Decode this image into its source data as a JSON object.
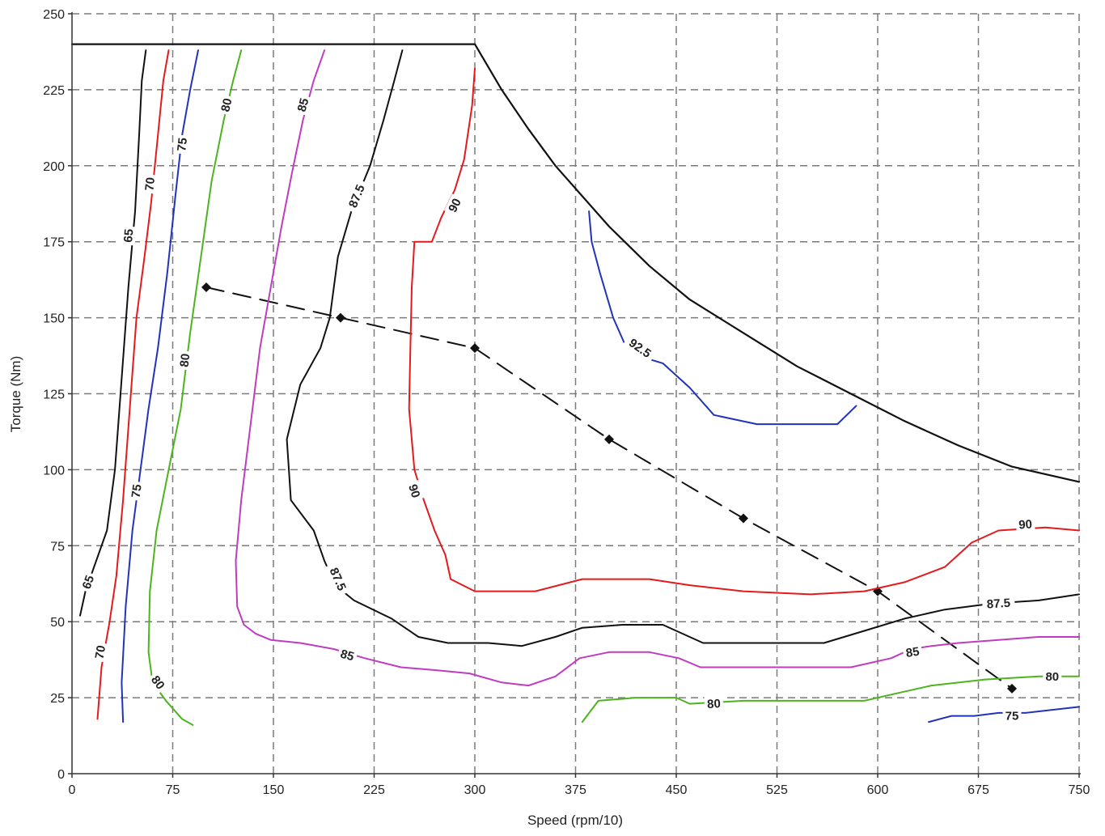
{
  "chart_data": {
    "type": "line",
    "title": "",
    "xlabel": "Speed (rpm/10)",
    "ylabel": "Torque (Nm)",
    "xlim": [
      0,
      750
    ],
    "ylim": [
      0,
      250
    ],
    "grid": true,
    "x_ticks": [
      {
        "value": 0,
        "label": "0"
      },
      {
        "value": 75,
        "label": "75"
      },
      {
        "value": 150,
        "label": "150"
      },
      {
        "value": 225,
        "label": "225"
      },
      {
        "value": 300,
        "label": "300"
      },
      {
        "value": 375,
        "label": "375"
      },
      {
        "value": 450,
        "label": "450"
      },
      {
        "value": 525,
        "label": "525"
      },
      {
        "value": 600,
        "label": "600"
      },
      {
        "value": 675,
        "label": "675"
      },
      {
        "value": 750,
        "label": "750"
      }
    ],
    "y_ticks": [
      {
        "value": 0,
        "label": "0"
      },
      {
        "value": 25,
        "label": "25"
      },
      {
        "value": 50,
        "label": "50"
      },
      {
        "value": 75,
        "label": "75"
      },
      {
        "value": 100,
        "label": "100"
      },
      {
        "value": 125,
        "label": "125"
      },
      {
        "value": 150,
        "label": "150"
      },
      {
        "value": 175,
        "label": "175"
      },
      {
        "value": 200,
        "label": "200"
      },
      {
        "value": 225,
        "label": "225"
      },
      {
        "value": 250,
        "label": "250"
      }
    ],
    "series": [
      {
        "role": "max-torque-envelope",
        "color": "#111111",
        "points": [
          [
            0,
            240
          ],
          [
            300,
            240
          ],
          [
            320,
            225
          ],
          [
            340,
            212
          ],
          [
            360,
            200
          ],
          [
            380,
            190
          ],
          [
            400,
            180
          ],
          [
            430,
            167
          ],
          [
            460,
            156
          ],
          [
            500,
            145
          ],
          [
            540,
            134
          ],
          [
            580,
            125
          ],
          [
            620,
            116
          ],
          [
            660,
            108
          ],
          [
            700,
            101
          ],
          [
            750,
            96
          ]
        ]
      },
      {
        "role": "operating-points",
        "color": "#111111",
        "dashed": true,
        "markers": true,
        "points": [
          [
            100,
            160
          ],
          [
            200,
            150
          ],
          [
            300,
            140
          ],
          [
            400,
            110
          ],
          [
            500,
            84
          ],
          [
            600,
            60
          ],
          [
            700,
            28
          ]
        ]
      },
      {
        "role": "contour",
        "level": "65",
        "color": "#111111",
        "points": [
          [
            55,
            238
          ],
          [
            52,
            228
          ],
          [
            50,
            210
          ],
          [
            47,
            185
          ],
          [
            42,
            160
          ],
          [
            37,
            130
          ],
          [
            32,
            100
          ],
          [
            26,
            80
          ],
          [
            18,
            70
          ],
          [
            10,
            60
          ],
          [
            6,
            52
          ]
        ],
        "labels": [
          {
            "text": "65",
            "x": 42,
            "y": 177
          },
          {
            "text": "65",
            "x": 12,
            "y": 63
          }
        ]
      },
      {
        "role": "contour",
        "level": "70",
        "color": "#e41a1c",
        "points": [
          [
            72,
            238
          ],
          [
            68,
            228
          ],
          [
            64,
            210
          ],
          [
            59,
            188
          ],
          [
            54,
            170
          ],
          [
            48,
            150
          ],
          [
            43,
            120
          ],
          [
            38,
            90
          ],
          [
            33,
            65
          ],
          [
            28,
            50
          ],
          [
            22,
            35
          ],
          [
            19,
            18
          ]
        ],
        "labels": [
          {
            "text": "70",
            "x": 58,
            "y": 194
          },
          {
            "text": "70",
            "x": 21,
            "y": 40
          }
        ]
      },
      {
        "role": "contour",
        "level": "75",
        "color": "#2233bb",
        "points": [
          [
            94,
            238
          ],
          [
            88,
            225
          ],
          [
            82,
            210
          ],
          [
            77,
            190
          ],
          [
            71,
            165
          ],
          [
            64,
            140
          ],
          [
            57,
            120
          ],
          [
            51,
            100
          ],
          [
            45,
            80
          ],
          [
            40,
            55
          ],
          [
            37,
            30
          ],
          [
            38,
            17
          ]
        ],
        "labels": [
          {
            "text": "75",
            "x": 82,
            "y": 207
          },
          {
            "text": "75",
            "x": 48,
            "y": 93
          }
        ]
      },
      {
        "role": "contour",
        "level": "80",
        "color": "#4db31f",
        "points": [
          [
            126,
            238
          ],
          [
            120,
            228
          ],
          [
            113,
            215
          ],
          [
            104,
            195
          ],
          [
            96,
            170
          ],
          [
            88,
            145
          ],
          [
            81,
            120
          ],
          [
            72,
            100
          ],
          [
            63,
            80
          ],
          [
            58,
            60
          ],
          [
            57,
            40
          ],
          [
            60,
            30
          ],
          [
            70,
            24
          ],
          [
            82,
            18
          ],
          [
            90,
            16
          ]
        ],
        "labels": [
          {
            "text": "80",
            "x": 115,
            "y": 220
          },
          {
            "text": "80",
            "x": 84,
            "y": 136
          },
          {
            "text": "80",
            "x": 64,
            "y": 30
          }
        ]
      },
      {
        "role": "contour",
        "level": "85",
        "color": "#c03bc0",
        "points": [
          [
            188,
            238
          ],
          [
            180,
            228
          ],
          [
            172,
            215
          ],
          [
            164,
            198
          ],
          [
            156,
            180
          ],
          [
            148,
            160
          ],
          [
            140,
            140
          ],
          [
            133,
            115
          ],
          [
            126,
            90
          ],
          [
            122,
            70
          ],
          [
            123,
            55
          ],
          [
            128,
            49
          ],
          [
            137,
            46
          ],
          [
            148,
            44
          ],
          [
            170,
            43
          ],
          [
            195,
            41
          ],
          [
            218,
            38
          ],
          [
            245,
            35
          ],
          [
            272,
            34
          ],
          [
            296,
            33
          ],
          [
            320,
            30
          ],
          [
            340,
            29
          ],
          [
            360,
            32
          ],
          [
            378,
            38
          ],
          [
            400,
            40
          ],
          [
            430,
            40
          ],
          [
            452,
            38
          ],
          [
            468,
            35
          ],
          [
            500,
            35
          ],
          [
            540,
            35
          ],
          [
            580,
            35
          ],
          [
            610,
            38
          ],
          [
            625,
            41
          ],
          [
            640,
            42
          ],
          [
            660,
            43
          ],
          [
            690,
            44
          ],
          [
            720,
            45
          ],
          [
            750,
            45
          ]
        ],
        "labels": [
          {
            "text": "85",
            "x": 172,
            "y": 220
          },
          {
            "text": "85",
            "x": 205,
            "y": 39
          },
          {
            "text": "85",
            "x": 626,
            "y": 40
          }
        ]
      },
      {
        "role": "contour",
        "level": "87.5",
        "color": "#111111",
        "points": [
          [
            246,
            238
          ],
          [
            240,
            228
          ],
          [
            232,
            215
          ],
          [
            222,
            200
          ],
          [
            208,
            185
          ],
          [
            198,
            170
          ],
          [
            192,
            150
          ],
          [
            185,
            140
          ],
          [
            170,
            128
          ],
          [
            160,
            110
          ],
          [
            163,
            90
          ],
          [
            180,
            80
          ],
          [
            188,
            70
          ],
          [
            196,
            62
          ],
          [
            210,
            57
          ],
          [
            238,
            51
          ],
          [
            258,
            45
          ],
          [
            280,
            43
          ],
          [
            310,
            43
          ],
          [
            335,
            42
          ],
          [
            360,
            45
          ],
          [
            380,
            48
          ],
          [
            410,
            49
          ],
          [
            440,
            49
          ],
          [
            470,
            43
          ],
          [
            500,
            43
          ],
          [
            530,
            43
          ],
          [
            560,
            43
          ],
          [
            590,
            47
          ],
          [
            620,
            51
          ],
          [
            650,
            54
          ],
          [
            685,
            56
          ],
          [
            720,
            57
          ],
          [
            750,
            59
          ]
        ],
        "labels": [
          {
            "text": "87.5",
            "x": 212,
            "y": 190
          },
          {
            "text": "87.5",
            "x": 198,
            "y": 64
          },
          {
            "text": "87.5",
            "x": 690,
            "y": 56
          }
        ]
      },
      {
        "role": "contour",
        "level": "90",
        "color": "#e41a1c",
        "points": [
          [
            300,
            232
          ],
          [
            298,
            220
          ],
          [
            292,
            202
          ],
          [
            285,
            192
          ],
          [
            275,
            183
          ],
          [
            268,
            175
          ],
          [
            255,
            175
          ],
          [
            253,
            160
          ],
          [
            252,
            140
          ],
          [
            251,
            120
          ],
          [
            255,
            100
          ],
          [
            262,
            90
          ],
          [
            270,
            80
          ],
          [
            278,
            72
          ],
          [
            282,
            64
          ],
          [
            300,
            60
          ],
          [
            345,
            60
          ],
          [
            380,
            64
          ],
          [
            430,
            64
          ],
          [
            460,
            62
          ],
          [
            500,
            60
          ],
          [
            550,
            59
          ],
          [
            590,
            60
          ],
          [
            620,
            63
          ],
          [
            650,
            68
          ],
          [
            670,
            76
          ],
          [
            690,
            80
          ],
          [
            725,
            81
          ],
          [
            750,
            80
          ]
        ],
        "labels": [
          {
            "text": "90",
            "x": 285,
            "y": 187
          },
          {
            "text": "90",
            "x": 255,
            "y": 93
          },
          {
            "text": "90",
            "x": 710,
            "y": 82
          }
        ]
      },
      {
        "role": "contour",
        "level": "92.5",
        "color": "#2233bb",
        "points": [
          [
            385,
            185
          ],
          [
            387,
            175
          ],
          [
            393,
            165
          ],
          [
            403,
            150
          ],
          [
            412,
            141
          ],
          [
            425,
            137
          ],
          [
            440,
            135
          ],
          [
            460,
            127
          ],
          [
            478,
            118
          ],
          [
            510,
            115
          ],
          [
            540,
            115
          ],
          [
            570,
            115
          ],
          [
            584,
            121
          ]
        ],
        "labels": [
          {
            "text": "92.5",
            "x": 423,
            "y": 140
          }
        ]
      },
      {
        "role": "contour",
        "level": "80",
        "color": "#4db31f",
        "points": [
          [
            380,
            17
          ],
          [
            392,
            24
          ],
          [
            420,
            25
          ],
          [
            450,
            25
          ],
          [
            460,
            23
          ],
          [
            500,
            24
          ],
          [
            550,
            24
          ],
          [
            590,
            24
          ],
          [
            610,
            26
          ],
          [
            640,
            29
          ],
          [
            680,
            31
          ],
          [
            720,
            32
          ],
          [
            750,
            32
          ]
        ],
        "labels": [
          {
            "text": "80",
            "x": 478,
            "y": 23
          },
          {
            "text": "80",
            "x": 730,
            "y": 32
          }
        ]
      },
      {
        "role": "contour",
        "level": "75",
        "color": "#2233bb",
        "points": [
          [
            638,
            17
          ],
          [
            655,
            19
          ],
          [
            672,
            19
          ],
          [
            690,
            20
          ],
          [
            710,
            20
          ],
          [
            730,
            21
          ],
          [
            750,
            22
          ]
        ],
        "labels": [
          {
            "text": "75",
            "x": 700,
            "y": 19
          }
        ]
      }
    ]
  }
}
